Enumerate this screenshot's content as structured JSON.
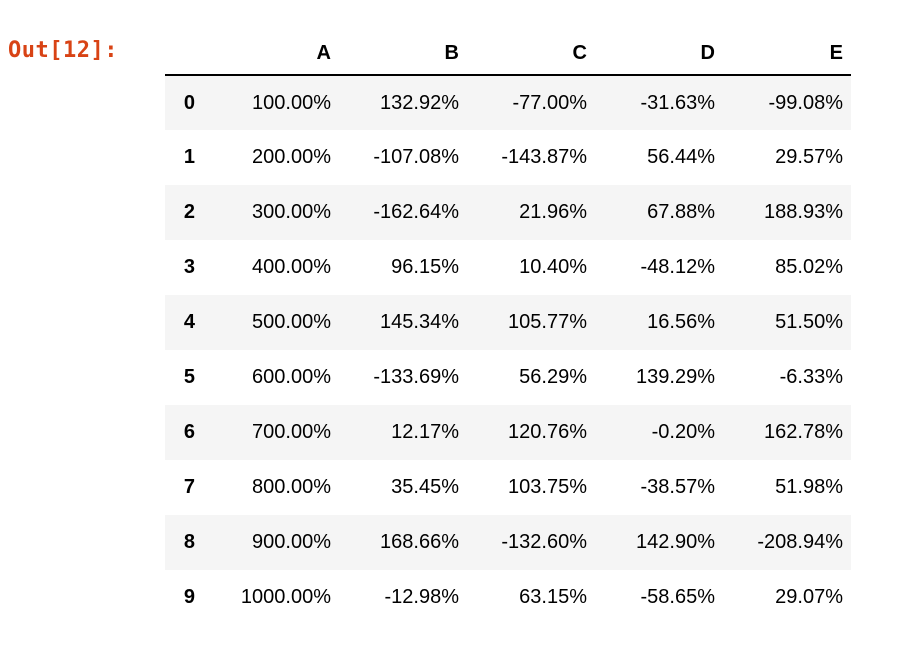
{
  "output_cell": {
    "prompt_label": "Out[12]:"
  },
  "colors": {
    "prompt_text": "#D84315",
    "row_stripe": "#f5f5f5",
    "header_border": "#000000",
    "table_text": "#000000",
    "background": "#ffffff"
  },
  "dataframe": {
    "index_header": "",
    "columns": [
      "A",
      "B",
      "C",
      "D",
      "E"
    ],
    "rows": [
      {
        "index": "0",
        "values": [
          "100.00%",
          "132.92%",
          "-77.00%",
          "-31.63%",
          "-99.08%"
        ]
      },
      {
        "index": "1",
        "values": [
          "200.00%",
          "-107.08%",
          "-143.87%",
          "56.44%",
          "29.57%"
        ]
      },
      {
        "index": "2",
        "values": [
          "300.00%",
          "-162.64%",
          "21.96%",
          "67.88%",
          "188.93%"
        ]
      },
      {
        "index": "3",
        "values": [
          "400.00%",
          "96.15%",
          "10.40%",
          "-48.12%",
          "85.02%"
        ]
      },
      {
        "index": "4",
        "values": [
          "500.00%",
          "145.34%",
          "105.77%",
          "16.56%",
          "51.50%"
        ]
      },
      {
        "index": "5",
        "values": [
          "600.00%",
          "-133.69%",
          "56.29%",
          "139.29%",
          "-6.33%"
        ]
      },
      {
        "index": "6",
        "values": [
          "700.00%",
          "12.17%",
          "120.76%",
          "-0.20%",
          "162.78%"
        ]
      },
      {
        "index": "7",
        "values": [
          "800.00%",
          "35.45%",
          "103.75%",
          "-38.57%",
          "51.98%"
        ]
      },
      {
        "index": "8",
        "values": [
          "900.00%",
          "168.66%",
          "-132.60%",
          "142.90%",
          "-208.94%"
        ]
      },
      {
        "index": "9",
        "values": [
          "1000.00%",
          "-12.98%",
          "63.15%",
          "-58.65%",
          "29.07%"
        ]
      }
    ]
  }
}
